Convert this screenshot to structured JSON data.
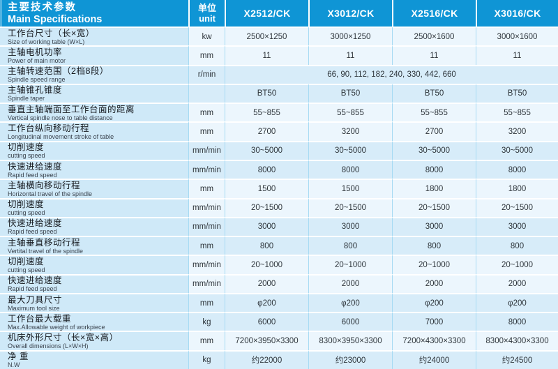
{
  "header": {
    "title_zh": "主要技术参数",
    "title_en": "Main Specifications",
    "unit_zh": "单位",
    "unit_en": "unit",
    "models": [
      "X2512/CK",
      "X3012/CK",
      "X2516/CK",
      "X3016/CK"
    ]
  },
  "rows": [
    {
      "zh": "工作台尺寸（长×宽）",
      "en": "Size of working table (W×L)",
      "unit": "kw",
      "values": [
        "2500×1250",
        "3000×1250",
        "2500×1600",
        "3000×1600"
      ]
    },
    {
      "zh": "主轴电机功率",
      "en": "Power of main motor",
      "unit": "mm",
      "values": [
        "11",
        "11",
        "11",
        "11"
      ]
    },
    {
      "zh": "主轴转速范围（2档8段）",
      "en": "Spindle speed range",
      "unit": "r/min",
      "span_value": "66,  90,  112,  182,  240,  330,  442,  660"
    },
    {
      "zh": "主轴锥孔锥度",
      "en": "Spindle taper",
      "unit": "",
      "values": [
        "BT50",
        "BT50",
        "BT50",
        "BT50"
      ]
    },
    {
      "zh": "垂直主轴端面至工作台面的距离",
      "en": "Vertical spindle nose to table distance",
      "unit": "mm",
      "values": [
        "55~855",
        "55~855",
        "55~855",
        "55~855"
      ]
    },
    {
      "zh": "工作台纵向移动行程",
      "en": "Longitudinal movement stroke of table",
      "unit": "mm",
      "values": [
        "2700",
        "3200",
        "2700",
        "3200"
      ]
    },
    {
      "zh": "切削速度",
      "en": "cutting speed",
      "unit": "mm/min",
      "values": [
        "30~5000",
        "30~5000",
        "30~5000",
        "30~5000"
      ]
    },
    {
      "zh": "快速进给速度",
      "en": "Rapid feed speed",
      "unit": "mm/min",
      "values": [
        "8000",
        "8000",
        "8000",
        "8000"
      ]
    },
    {
      "zh": "主轴横向移动行程",
      "en": "Horizontal travel of the spindle",
      "unit": "mm",
      "values": [
        "1500",
        "1500",
        "1800",
        "1800"
      ]
    },
    {
      "zh": "切削速度",
      "en": "cutting speed",
      "unit": "mm/min",
      "values": [
        "20~1500",
        "20~1500",
        "20~1500",
        "20~1500"
      ]
    },
    {
      "zh": "快速进给速度",
      "en": "Rapid feed speed",
      "unit": "mm/min",
      "values": [
        "3000",
        "3000",
        "3000",
        "3000"
      ]
    },
    {
      "zh": "主轴垂直移动行程",
      "en": "Vertital travel of the spindle",
      "unit": "mm",
      "values": [
        "800",
        "800",
        "800",
        "800"
      ]
    },
    {
      "zh": "切削速度",
      "en": "cutting speed",
      "unit": "mm/min",
      "values": [
        "20~1000",
        "20~1000",
        "20~1000",
        "20~1000"
      ]
    },
    {
      "zh": "快速进给速度",
      "en": "Rapid feed speed",
      "unit": "mm/min",
      "values": [
        "2000",
        "2000",
        "2000",
        "2000"
      ]
    },
    {
      "zh": "最大刀具尺寸",
      "en": "Maximum tool size",
      "unit": "mm",
      "values": [
        "φ200",
        "φ200",
        "φ200",
        "φ200"
      ]
    },
    {
      "zh": "工作台最大载重",
      "en": "Max.Allowable weight of workpiece",
      "unit": "kg",
      "values": [
        "6000",
        "6000",
        "7000",
        "8000"
      ]
    },
    {
      "zh": "机床外形尺寸（长×宽×高）",
      "en": "Overall dimensions (L×W×H)",
      "unit": "mm",
      "values": [
        "7200×3950×3300",
        "8300×3950×3300",
        "7200×4300×3300",
        "8300×4300×3300"
      ]
    },
    {
      "zh": "净 重",
      "en": "N.W",
      "unit": "kg",
      "values": [
        "约22000",
        "约23000",
        "约24000",
        "约24500"
      ]
    }
  ],
  "colors": {
    "header_bg": "#0f95d5",
    "label_column_bg": "#cfe9f8",
    "row_light": "#ecf6fd",
    "row_dark": "#d7ecf9",
    "cell_border": "#a6daf3"
  }
}
